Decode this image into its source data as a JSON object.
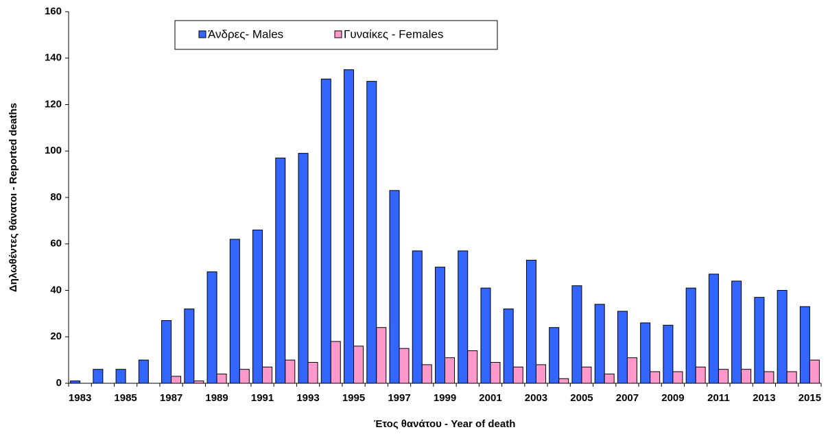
{
  "chart_data": {
    "type": "bar",
    "xlabel": "Έτος θανάτου - Year of death",
    "ylabel": "Δηλωθέντες θάνατοι -  Reported deaths",
    "categories": [
      "1983",
      null,
      "1985",
      null,
      "1987",
      null,
      "1989",
      null,
      "1991",
      null,
      "1993",
      null,
      "1995",
      null,
      "1997",
      null,
      "1999",
      null,
      "2001",
      null,
      "2003",
      null,
      "2005",
      null,
      "2007",
      null,
      "2009",
      null,
      "2011",
      null,
      "2013",
      null,
      "2015"
    ],
    "series": [
      {
        "name": "Άνδρες- Males",
        "color": "#3366ff",
        "values": [
          1,
          6,
          6,
          10,
          27,
          32,
          48,
          62,
          66,
          97,
          99,
          131,
          135,
          130,
          83,
          57,
          50,
          57,
          41,
          32,
          53,
          24,
          42,
          34,
          31,
          26,
          25,
          41,
          47,
          44,
          37,
          40,
          33
        ]
      },
      {
        "name": "Γυναίκες - Females",
        "color": "#ff99cc",
        "values": [
          0,
          0,
          0,
          0,
          3,
          1,
          4,
          6,
          7,
          10,
          9,
          18,
          16,
          24,
          15,
          8,
          11,
          14,
          9,
          7,
          8,
          2,
          7,
          4,
          11,
          5,
          5,
          7,
          6,
          6,
          5,
          5,
          10
        ]
      }
    ],
    "ylim": [
      0,
      160
    ],
    "yticks": [
      0,
      20,
      40,
      60,
      80,
      100,
      120,
      140,
      160
    ],
    "grid": false,
    "legend": "top"
  }
}
